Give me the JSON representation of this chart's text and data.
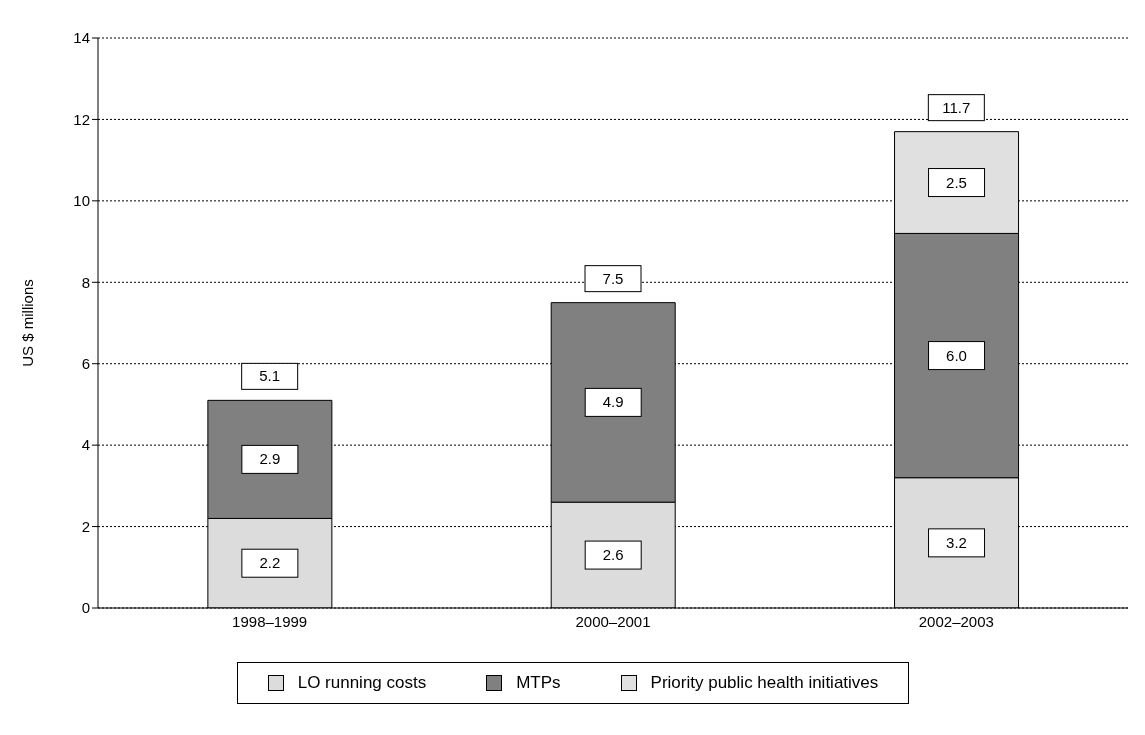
{
  "chart_data": {
    "type": "bar",
    "stacked": true,
    "ylabel": "US $ millions",
    "categories": [
      "1998–1999",
      "2000–2001",
      "2002–2003"
    ],
    "series": [
      {
        "name": "LO running costs",
        "color": "#dcdcdc",
        "values": [
          2.2,
          2.6,
          3.2
        ],
        "value_labels": [
          "2.2",
          "2.6",
          "3.2"
        ]
      },
      {
        "name": "MTPs",
        "color": "#808080",
        "values": [
          2.9,
          4.9,
          6.0
        ],
        "value_labels": [
          "2.9",
          "4.9",
          "6.0"
        ]
      },
      {
        "name": "Priority public health initiatives",
        "color": "#e0e0e0",
        "values": [
          null,
          null,
          2.5
        ],
        "value_labels": [
          null,
          null,
          "2.5"
        ]
      }
    ],
    "ylim": [
      0,
      14
    ],
    "yticks": [
      0,
      2,
      4,
      6,
      8,
      10,
      12,
      14
    ],
    "grid": "y",
    "legend": "bottom",
    "totals": [
      "5.1",
      "7.5",
      "11.7"
    ]
  }
}
